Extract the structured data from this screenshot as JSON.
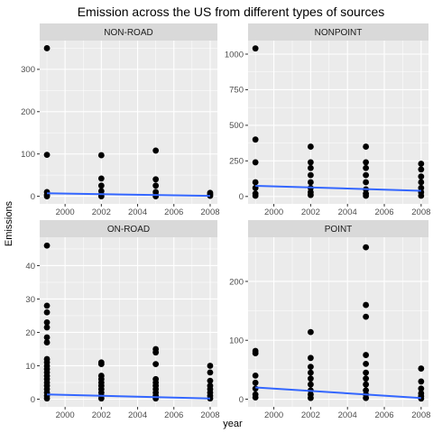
{
  "chart_data": {
    "type": "scatter",
    "title": "Emission across the US from different types of sources",
    "xlabel": "year",
    "ylabel": "Emissions",
    "facet_layout": "2x2",
    "smooth_line": true,
    "colors": {
      "panel_bg": "#EBEBEB",
      "strip_bg": "#D9D9D9",
      "grid": "#FFFFFF",
      "point": "#000000",
      "trend": "#3366FF",
      "tick_label": "#4D4D4D"
    },
    "panels": [
      {
        "name": "NON-ROAD",
        "xlim": [
          1998.6,
          2008.4
        ],
        "ylim": [
          -18,
          368
        ],
        "x_ticks": [
          "2000",
          "2002",
          "2004",
          "2006",
          "2008"
        ],
        "y_ticks": [
          "0",
          "100",
          "200",
          "300"
        ],
        "y_tick_values": [
          0,
          100,
          200,
          300
        ],
        "points": [
          {
            "x": 1999,
            "y": 350
          },
          {
            "x": 1999,
            "y": 98
          },
          {
            "x": 1999,
            "y": 10
          },
          {
            "x": 1999,
            "y": 3
          },
          {
            "x": 1999,
            "y": 0
          },
          {
            "x": 2002,
            "y": 97
          },
          {
            "x": 2002,
            "y": 42
          },
          {
            "x": 2002,
            "y": 25
          },
          {
            "x": 2002,
            "y": 12
          },
          {
            "x": 2002,
            "y": 4
          },
          {
            "x": 2002,
            "y": 0
          },
          {
            "x": 2005,
            "y": 108
          },
          {
            "x": 2005,
            "y": 40
          },
          {
            "x": 2005,
            "y": 25
          },
          {
            "x": 2005,
            "y": 10
          },
          {
            "x": 2005,
            "y": 3
          },
          {
            "x": 2005,
            "y": 0
          },
          {
            "x": 2008,
            "y": 8
          },
          {
            "x": 2008,
            "y": 4
          },
          {
            "x": 2008,
            "y": 1
          }
        ],
        "trend": [
          {
            "x": 1999,
            "y": 7
          },
          {
            "x": 2008,
            "y": 1
          }
        ]
      },
      {
        "name": "NONPOINT",
        "xlim": [
          1998.6,
          2008.4
        ],
        "ylim": [
          -52,
          1095
        ],
        "x_ticks": [
          "2000",
          "2002",
          "2004",
          "2006",
          "2008"
        ],
        "y_ticks": [
          "0",
          "250",
          "500",
          "750",
          "1000"
        ],
        "y_tick_values": [
          0,
          250,
          500,
          750,
          1000
        ],
        "points": [
          {
            "x": 1999,
            "y": 1040
          },
          {
            "x": 1999,
            "y": 400
          },
          {
            "x": 1999,
            "y": 240
          },
          {
            "x": 1999,
            "y": 100
          },
          {
            "x": 1999,
            "y": 60
          },
          {
            "x": 1999,
            "y": 20
          },
          {
            "x": 1999,
            "y": 5
          },
          {
            "x": 2002,
            "y": 350
          },
          {
            "x": 2002,
            "y": 240
          },
          {
            "x": 2002,
            "y": 200
          },
          {
            "x": 2002,
            "y": 150
          },
          {
            "x": 2002,
            "y": 100
          },
          {
            "x": 2002,
            "y": 60
          },
          {
            "x": 2002,
            "y": 30
          },
          {
            "x": 2002,
            "y": 10
          },
          {
            "x": 2005,
            "y": 350
          },
          {
            "x": 2005,
            "y": 240
          },
          {
            "x": 2005,
            "y": 200
          },
          {
            "x": 2005,
            "y": 150
          },
          {
            "x": 2005,
            "y": 100
          },
          {
            "x": 2005,
            "y": 50
          },
          {
            "x": 2005,
            "y": 20
          },
          {
            "x": 2005,
            "y": 5
          },
          {
            "x": 2008,
            "y": 230
          },
          {
            "x": 2008,
            "y": 190
          },
          {
            "x": 2008,
            "y": 140
          },
          {
            "x": 2008,
            "y": 100
          },
          {
            "x": 2008,
            "y": 60
          },
          {
            "x": 2008,
            "y": 30
          },
          {
            "x": 2008,
            "y": 5
          }
        ],
        "trend": [
          {
            "x": 1999,
            "y": 75
          },
          {
            "x": 2008,
            "y": 40
          }
        ]
      },
      {
        "name": "ON-ROAD",
        "xlim": [
          1998.6,
          2008.4
        ],
        "ylim": [
          -2.3,
          48.5
        ],
        "x_ticks": [
          "2000",
          "2002",
          "2004",
          "2006",
          "2008"
        ],
        "y_ticks": [
          "0",
          "10",
          "20",
          "30",
          "40"
        ],
        "y_tick_values": [
          0,
          10,
          20,
          30,
          40
        ],
        "points": [
          {
            "x": 1999,
            "y": 46
          },
          {
            "x": 1999,
            "y": 28
          },
          {
            "x": 1999,
            "y": 26
          },
          {
            "x": 1999,
            "y": 23
          },
          {
            "x": 1999,
            "y": 21.5
          },
          {
            "x": 1999,
            "y": 18.5
          },
          {
            "x": 1999,
            "y": 17
          },
          {
            "x": 1999,
            "y": 12
          },
          {
            "x": 1999,
            "y": 11
          },
          {
            "x": 1999,
            "y": 10
          },
          {
            "x": 1999,
            "y": 9
          },
          {
            "x": 1999,
            "y": 8
          },
          {
            "x": 1999,
            "y": 7
          },
          {
            "x": 1999,
            "y": 6
          },
          {
            "x": 1999,
            "y": 5
          },
          {
            "x": 1999,
            "y": 4
          },
          {
            "x": 1999,
            "y": 3
          },
          {
            "x": 1999,
            "y": 2
          },
          {
            "x": 1999,
            "y": 1
          },
          {
            "x": 1999,
            "y": 0.2
          },
          {
            "x": 2002,
            "y": 11
          },
          {
            "x": 2002,
            "y": 10.5
          },
          {
            "x": 2002,
            "y": 7
          },
          {
            "x": 2002,
            "y": 6
          },
          {
            "x": 2002,
            "y": 5
          },
          {
            "x": 2002,
            "y": 4
          },
          {
            "x": 2002,
            "y": 3
          },
          {
            "x": 2002,
            "y": 2
          },
          {
            "x": 2002,
            "y": 1
          },
          {
            "x": 2002,
            "y": 0.2
          },
          {
            "x": 2005,
            "y": 15
          },
          {
            "x": 2005,
            "y": 14
          },
          {
            "x": 2005,
            "y": 10.5
          },
          {
            "x": 2005,
            "y": 6
          },
          {
            "x": 2005,
            "y": 5
          },
          {
            "x": 2005,
            "y": 4
          },
          {
            "x": 2005,
            "y": 3
          },
          {
            "x": 2005,
            "y": 2
          },
          {
            "x": 2005,
            "y": 1
          },
          {
            "x": 2005,
            "y": 0.2
          },
          {
            "x": 2008,
            "y": 10
          },
          {
            "x": 2008,
            "y": 8
          },
          {
            "x": 2008,
            "y": 5.5
          },
          {
            "x": 2008,
            "y": 4
          },
          {
            "x": 2008,
            "y": 3
          },
          {
            "x": 2008,
            "y": 2
          },
          {
            "x": 2008,
            "y": 1
          },
          {
            "x": 2008,
            "y": 0.2
          }
        ],
        "trend": [
          {
            "x": 1999,
            "y": 1.4
          },
          {
            "x": 2008,
            "y": 0.2
          }
        ]
      },
      {
        "name": "POINT",
        "xlim": [
          1998.6,
          2008.4
        ],
        "ylim": [
          -13,
          275
        ],
        "x_ticks": [
          "2000",
          "2002",
          "2004",
          "2006",
          "2008"
        ],
        "y_ticks": [
          "0",
          "100",
          "200"
        ],
        "y_tick_values": [
          0,
          100,
          200
        ],
        "points": [
          {
            "x": 1999,
            "y": 82
          },
          {
            "x": 1999,
            "y": 78
          },
          {
            "x": 1999,
            "y": 40
          },
          {
            "x": 1999,
            "y": 28
          },
          {
            "x": 1999,
            "y": 18
          },
          {
            "x": 1999,
            "y": 8
          },
          {
            "x": 1999,
            "y": 3
          },
          {
            "x": 2002,
            "y": 114
          },
          {
            "x": 2002,
            "y": 70
          },
          {
            "x": 2002,
            "y": 55
          },
          {
            "x": 2002,
            "y": 45
          },
          {
            "x": 2002,
            "y": 35
          },
          {
            "x": 2002,
            "y": 25
          },
          {
            "x": 2002,
            "y": 15
          },
          {
            "x": 2002,
            "y": 8
          },
          {
            "x": 2002,
            "y": 2
          },
          {
            "x": 2005,
            "y": 258
          },
          {
            "x": 2005,
            "y": 160
          },
          {
            "x": 2005,
            "y": 140
          },
          {
            "x": 2005,
            "y": 75
          },
          {
            "x": 2005,
            "y": 60
          },
          {
            "x": 2005,
            "y": 45
          },
          {
            "x": 2005,
            "y": 35
          },
          {
            "x": 2005,
            "y": 25
          },
          {
            "x": 2005,
            "y": 15
          },
          {
            "x": 2005,
            "y": 8
          },
          {
            "x": 2005,
            "y": 2
          },
          {
            "x": 2008,
            "y": 52
          },
          {
            "x": 2008,
            "y": 30
          },
          {
            "x": 2008,
            "y": 18
          },
          {
            "x": 2008,
            "y": 10
          },
          {
            "x": 2008,
            "y": 5
          },
          {
            "x": 2008,
            "y": 1
          }
        ],
        "trend": [
          {
            "x": 1999,
            "y": 20
          },
          {
            "x": 2008,
            "y": 2
          }
        ]
      }
    ]
  }
}
